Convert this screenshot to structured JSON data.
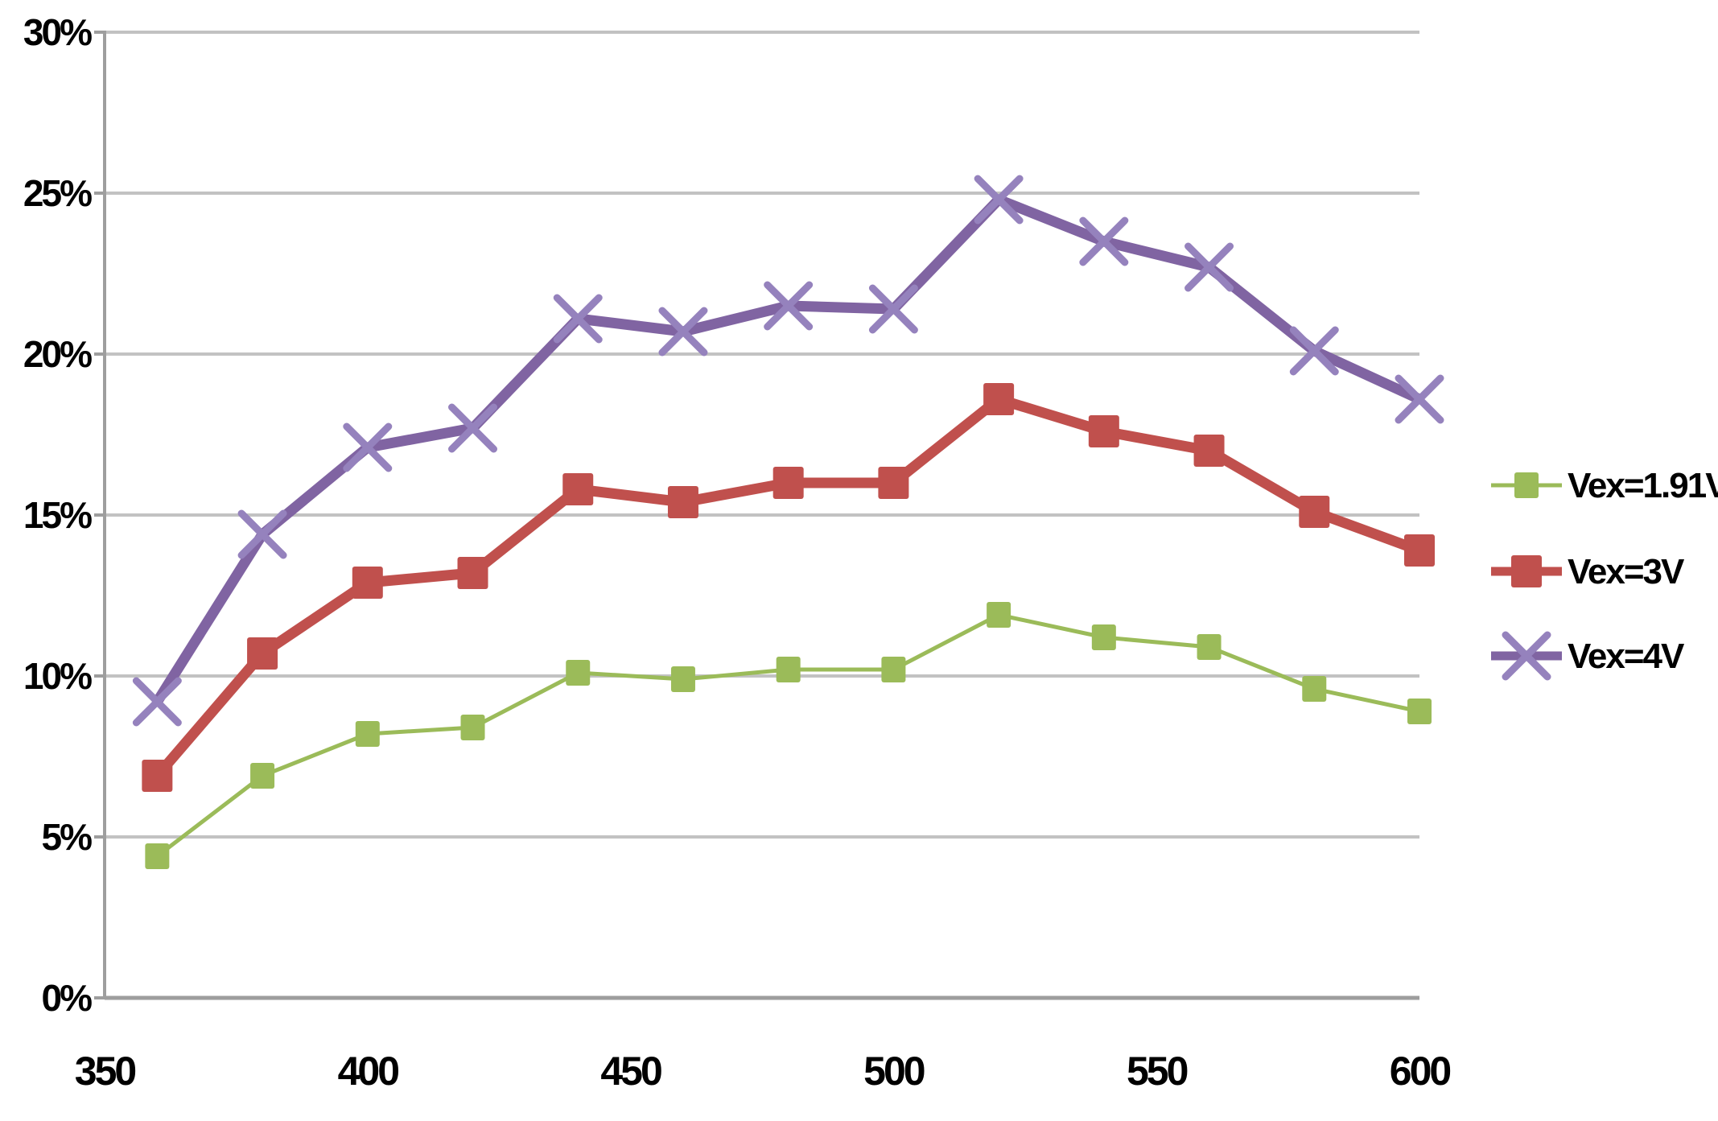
{
  "chart_data": {
    "type": "line",
    "title": "",
    "xlabel": "",
    "ylabel": "",
    "x_range": [
      350,
      600
    ],
    "y_range": [
      0,
      30
    ],
    "x_ticks": [
      350,
      400,
      450,
      500,
      550,
      600
    ],
    "y_ticks": [
      {
        "value": 0,
        "label": "0%"
      },
      {
        "value": 5,
        "label": "5%"
      },
      {
        "value": 10,
        "label": "10%"
      },
      {
        "value": 15,
        "label": "15%"
      },
      {
        "value": 20,
        "label": "20%"
      },
      {
        "value": 25,
        "label": "25%"
      },
      {
        "value": 30,
        "label": "30%"
      }
    ],
    "grid": "horizontal-gridlines-on",
    "legend_position": "right",
    "x": [
      360,
      380,
      400,
      420,
      440,
      460,
      480,
      500,
      520,
      540,
      560,
      580,
      600
    ],
    "series": [
      {
        "name": "Vex=1.91V",
        "marker": "square-small",
        "color": "#9BBB59",
        "marker_color": "#9BBB59",
        "values": [
          4.4,
          6.9,
          8.2,
          8.4,
          10.1,
          9.9,
          10.2,
          10.2,
          11.9,
          11.2,
          10.9,
          9.6,
          8.9
        ]
      },
      {
        "name": "Vex=3V",
        "marker": "square",
        "color": "#C0504D",
        "marker_color": "#C0504D",
        "values": [
          6.9,
          10.7,
          12.9,
          13.2,
          15.8,
          15.4,
          16.0,
          16.0,
          18.6,
          17.6,
          17.0,
          15.1,
          13.9
        ]
      },
      {
        "name": "Vex=4V",
        "marker": "x",
        "color": "#8064A2",
        "marker_color": "#9582BD",
        "values": [
          9.2,
          14.4,
          17.1,
          17.7,
          21.1,
          20.7,
          21.5,
          21.4,
          24.8,
          23.5,
          22.7,
          20.1,
          18.6
        ]
      }
    ],
    "colors": {
      "gridline": "#C2C2C2",
      "axis": "#9E9E9E",
      "text": "#000000",
      "background": "#FFFFFF"
    }
  }
}
